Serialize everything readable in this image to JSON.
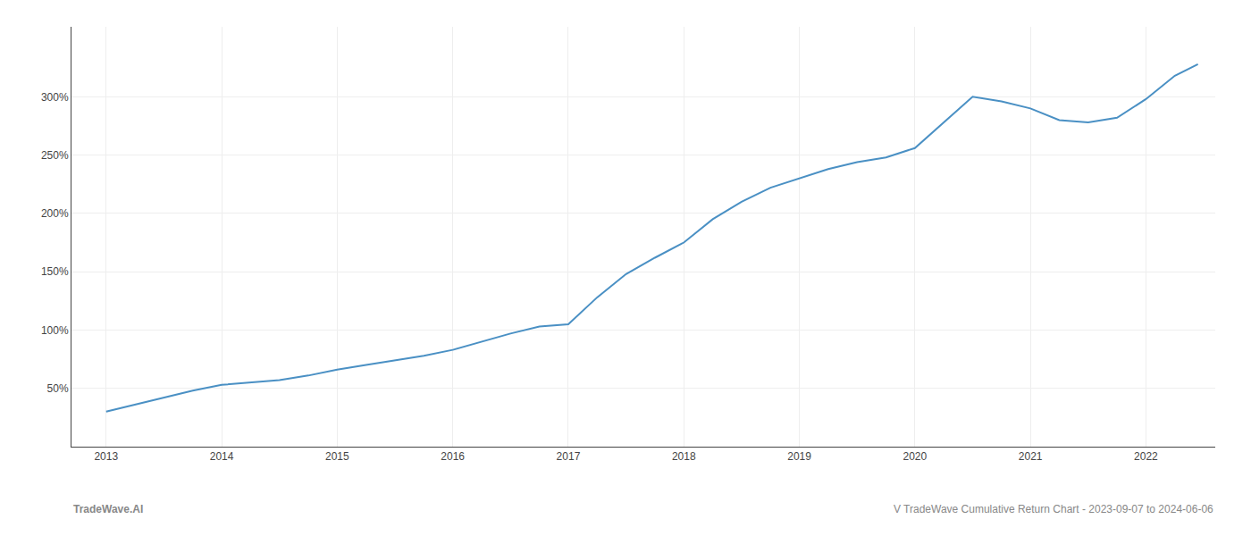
{
  "chart_data": {
    "type": "line",
    "x": [
      2013.0,
      2013.25,
      2013.5,
      2013.75,
      2014.0,
      2014.25,
      2014.5,
      2014.75,
      2015.0,
      2015.25,
      2015.5,
      2015.75,
      2016.0,
      2016.25,
      2016.5,
      2016.75,
      2017.0,
      2017.25,
      2017.5,
      2017.75,
      2018.0,
      2018.25,
      2018.5,
      2018.75,
      2019.0,
      2019.25,
      2019.5,
      2019.75,
      2020.0,
      2020.25,
      2020.5,
      2020.75,
      2021.0,
      2021.25,
      2021.5,
      2021.75,
      2022.0,
      2022.25,
      2022.45
    ],
    "values": [
      30,
      36,
      42,
      48,
      53,
      55,
      57,
      61,
      66,
      70,
      74,
      78,
      83,
      90,
      97,
      103,
      105,
      128,
      148,
      162,
      175,
      195,
      210,
      222,
      230,
      238,
      244,
      248,
      256,
      278,
      300,
      296,
      290,
      280,
      278,
      282,
      298,
      318,
      328
    ],
    "color": "#4a90c4",
    "xlim": [
      2012.7,
      2022.6
    ],
    "ylim": [
      0,
      360
    ],
    "xticks": [
      2013,
      2014,
      2015,
      2016,
      2017,
      2018,
      2019,
      2020,
      2021,
      2022
    ],
    "yticks": [
      {
        "value": 50,
        "label": "50%"
      },
      {
        "value": 100,
        "label": "100%"
      },
      {
        "value": 150,
        "label": "150%"
      },
      {
        "value": 200,
        "label": "200%"
      },
      {
        "value": 250,
        "label": "250%"
      },
      {
        "value": 300,
        "label": "300%"
      }
    ],
    "grid": true,
    "annotations": [
      "TradeWave.AI",
      "V TradeWave Cumulative Return Chart - 2023-09-07 to 2024-06-06"
    ]
  }
}
